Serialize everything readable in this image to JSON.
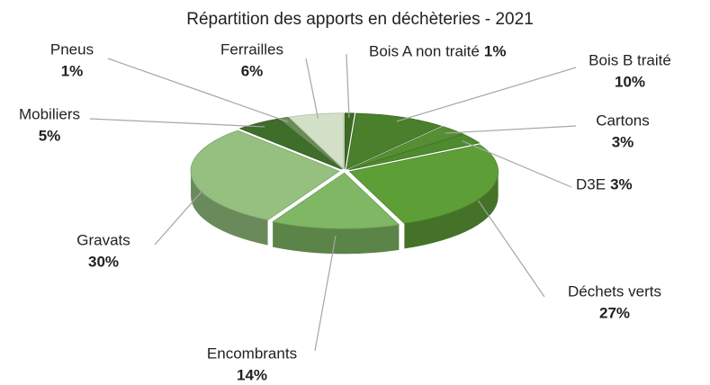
{
  "chart_data": {
    "type": "pie",
    "title": "Répartition des apports en déchèteries - 2021",
    "categories": [
      "Bois A non traité",
      "Bois B traité",
      "Cartons",
      "D3E",
      "Déchets verts",
      "Encombrants",
      "Gravats",
      "Mobiliers",
      "Pneus",
      "Ferrailles"
    ],
    "values": [
      1,
      10,
      3,
      3,
      27,
      14,
      30,
      5,
      1,
      6
    ],
    "value_labels": [
      "1%",
      "10%",
      "3%",
      "3%",
      "27%",
      "14%",
      "30%",
      "5%",
      "1%",
      "6%"
    ],
    "colors": [
      "#3d6b24",
      "#4a7f2c",
      "#568f33",
      "#4e8a2e",
      "#5e9e37",
      "#7fb765",
      "#95c07f",
      "#3f6d2a",
      "#6a8f55",
      "#d2e0c8"
    ]
  }
}
